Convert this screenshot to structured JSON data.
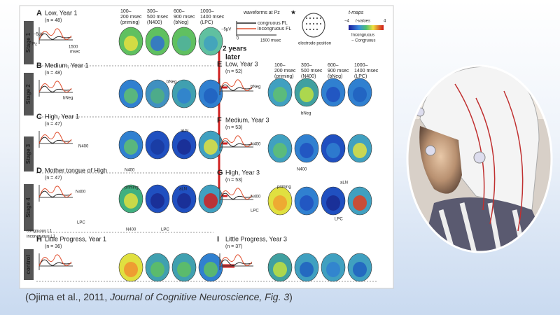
{
  "figure": {
    "column_headers": [
      [
        "100–",
        "200 msec",
        "(priming)"
      ],
      [
        "300–",
        "500 msec",
        "(N400)"
      ],
      [
        "600–",
        "900 msec",
        "(bNeg)"
      ],
      [
        "1000–",
        "1400 msec",
        "(LPC)"
      ]
    ],
    "legend": {
      "waveforms": "waveforms at Pz",
      "congruous": "congruous FL",
      "incongruous": "incongruous FL",
      "scale": "−5μV",
      "zero": "0",
      "time": "1500 msec",
      "electrode": "electrode position",
      "tmaps": "t-maps",
      "tvalues": "t-values",
      "min": "−4",
      "max": "4",
      "contrast": [
        "Incongruous",
        "− Congruous"
      ]
    },
    "stages": [
      "Stage 1",
      "Stage 2",
      "Stage 3",
      "Stage 4",
      "control"
    ],
    "arrow_label": [
      "2 years",
      "later"
    ],
    "panels": [
      {
        "letter": "A",
        "title": "Low, Year 1",
        "n": "(n = 48)",
        "annotations": [
          "−5μV",
          "Pz",
          "1500",
          "msec"
        ]
      },
      {
        "letter": "B",
        "title": "Medium, Year 1",
        "n": "(n = 48)",
        "annotations": [
          "bNeg",
          "bNeg"
        ]
      },
      {
        "letter": "C",
        "title": "High, Year 1",
        "n": "(n = 47)",
        "annotations": [
          "N400",
          "aLN",
          "N400"
        ]
      },
      {
        "letter": "D",
        "title": "Mother tongue of High",
        "n": "(n = 47)",
        "annotations": [
          "N400",
          "priming",
          "aLN",
          "congruous L1",
          "incongruous L1",
          "LPC",
          "N400",
          "LPC"
        ]
      },
      {
        "letter": "E",
        "title": "Low, Year 3",
        "n": "(n = 52)",
        "annotations": [
          "bNeg",
          "bNeg"
        ]
      },
      {
        "letter": "F",
        "title": "Medium, Year 3",
        "n": "(n = 53)",
        "annotations": [
          "N400",
          "N400"
        ]
      },
      {
        "letter": "G",
        "title": "High, Year 3",
        "n": "(n = 53)",
        "annotations": [
          "N400",
          "priming",
          "aLN",
          "LPC",
          "LPC"
        ]
      },
      {
        "letter": "H",
        "title": "Little Progress, Year 1",
        "n": "(n = 36)",
        "annotations": []
      },
      {
        "letter": "I",
        "title": "Little Progress, Year 3",
        "n": "(n = 37)",
        "annotations": []
      }
    ]
  },
  "caption": {
    "prefix": "(Ojima et al., 2011, ",
    "journal": "Journal of Cognitive Neuroscience, Fig. 3",
    "suffix": ")"
  }
}
